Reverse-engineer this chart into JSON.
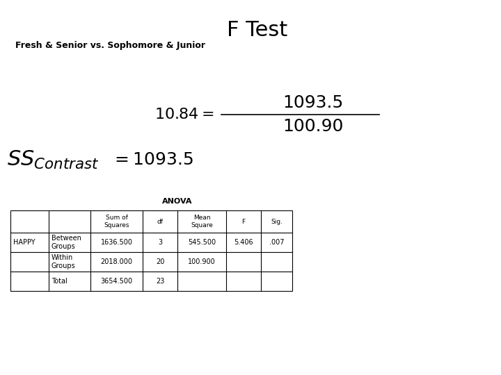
{
  "title": "F Test",
  "subtitle": "Fresh & Senior vs. Sophomore & Junior",
  "background_color": "#ffffff",
  "title_fontsize": 22,
  "subtitle_fontsize": 9,
  "anova_title": "ANOVA",
  "table_col_widths": [
    55,
    60,
    75,
    50,
    70,
    50,
    45
  ],
  "table_rows": [
    [
      "HAPPY",
      "Between\nGroups",
      "1636.500",
      "3",
      "545.500",
      "5.406",
      ".007"
    ],
    [
      "",
      "Within\nGroups",
      "2018.000",
      "20",
      "100.900",
      "",
      ""
    ],
    [
      "",
      "Total",
      "3654.500",
      "23",
      "",
      "",
      ""
    ]
  ],
  "formula_f": "10.84",
  "formula_num": "1093.5",
  "formula_den": "100.90"
}
